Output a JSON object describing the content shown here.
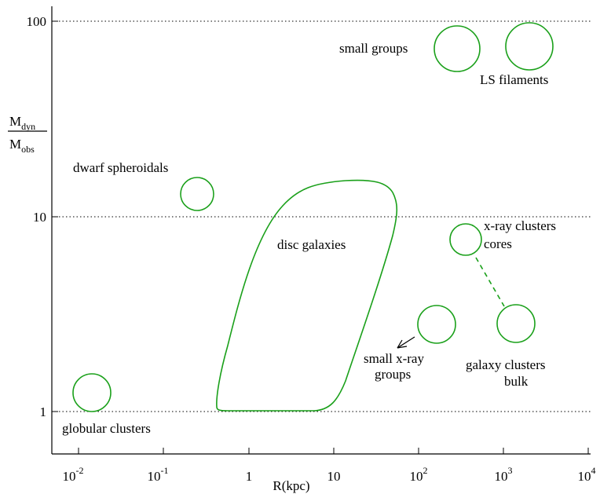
{
  "chart_data": {
    "type": "scatter",
    "xlabel": "R(kpc)",
    "ylabel": {
      "num": "M",
      "num_sub": "dyn",
      "den": "M",
      "den_sub": "obs"
    },
    "xscale": "log",
    "yscale": "log",
    "xlim": [
      0.005,
      10000
    ],
    "ylim": [
      0.6,
      130
    ],
    "x_ticks": [
      {
        "base": "10",
        "exp": "-2",
        "value": 0.01
      },
      {
        "base": "10",
        "exp": "-1",
        "value": 0.1
      },
      {
        "base": "1",
        "exp": "",
        "value": 1
      },
      {
        "base": "10",
        "exp": "",
        "value": 10
      },
      {
        "base": "10",
        "exp": "2",
        "value": 100
      },
      {
        "base": "10",
        "exp": "3",
        "value": 1000
      },
      {
        "base": "10",
        "exp": "4",
        "value": 10000
      }
    ],
    "y_ticks": [
      {
        "label": "1",
        "value": 1
      },
      {
        "label": "10",
        "value": 10
      },
      {
        "label": "100",
        "value": 100
      }
    ],
    "grid": "horizontal dotted at 1, 10, 100",
    "color": "#1aa01a",
    "regions": [
      {
        "name": "globular clusters",
        "shape": "circle",
        "x": 0.014,
        "y": 1.25
      },
      {
        "name": "dwarf spheroidals",
        "shape": "circle",
        "x": 0.4,
        "y": 13
      },
      {
        "name": "small groups",
        "shape": "circle",
        "x": 350,
        "y": 72
      },
      {
        "name": "LS filaments",
        "shape": "circle",
        "x": 2800,
        "y": 72
      },
      {
        "name": "x-ray clusters cores",
        "shape": "circle",
        "x": 450,
        "y": 7.7
      },
      {
        "name": "galaxy clusters bulk",
        "shape": "circle",
        "x": 1500,
        "y": 2.8
      },
      {
        "name": "small x-ray groups",
        "shape": "circle",
        "x": 165,
        "y": 2.8
      },
      {
        "name": "disc galaxies",
        "shape": "region",
        "x_range": [
          0.4,
          60
        ],
        "y_range": [
          1,
          15
        ]
      }
    ],
    "labels": {
      "globular": "globular clusters",
      "dwarf": "dwarf spheroidals",
      "small_groups": "small groups",
      "ls_filaments": "LS filaments",
      "disc": "disc galaxies",
      "xray_cores_1": "x-ray clusters",
      "xray_cores_2": "cores",
      "small_xray_1": "small x-ray",
      "small_xray_2": "groups",
      "galaxy_bulk_1": "galaxy clusters",
      "galaxy_bulk_2": "bulk"
    }
  }
}
